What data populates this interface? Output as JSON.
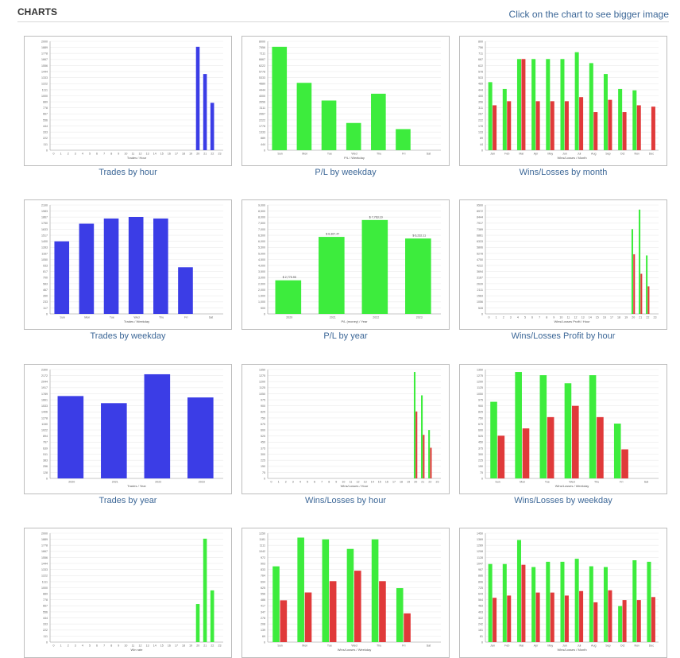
{
  "header": {
    "title": "CHARTS",
    "hint": "Click on the chart to see bigger image"
  },
  "colors": {
    "blue": "#3b3de6",
    "green": "#3dec3d",
    "red": "#e03a3a"
  },
  "charts": [
    {
      "caption": "Trades by hour",
      "chart_data": {
        "type": "bar",
        "categories": [
          "0",
          "1",
          "2",
          "3",
          "4",
          "5",
          "6",
          "7",
          "8",
          "9",
          "10",
          "11",
          "12",
          "13",
          "14",
          "15",
          "16",
          "17",
          "18",
          "19",
          "20",
          "21",
          "22",
          "23"
        ],
        "series": [
          {
            "color": "blue",
            "values": [
              0,
              0,
              0,
              0,
              0,
              0,
              0,
              0,
              0,
              0,
              0,
              0,
              0,
              0,
              0,
              0,
              0,
              0,
              0,
              0,
              1900,
              1400,
              870,
              0
            ]
          }
        ],
        "ylim": [
          0,
          2000
        ],
        "xlabel": "Trades / Hour"
      }
    },
    {
      "caption": "P/L by weekday",
      "chart_data": {
        "type": "bar",
        "categories": [
          "Sun",
          "Mon",
          "Tue",
          "Wed",
          "Thu",
          "Fri",
          "Sat"
        ],
        "series": [
          {
            "color": "green",
            "values": [
              7600,
              4950,
              3650,
              2000,
              4150,
              1550,
              0
            ]
          }
        ],
        "ylim": [
          0,
          8000
        ],
        "xlabel": "P/L / Weekday"
      }
    },
    {
      "caption": "Wins/Losses by month",
      "chart_data": {
        "type": "bar",
        "categories": [
          "Jan",
          "Feb",
          "Mar",
          "Apr",
          "May",
          "Jun",
          "Jul",
          "Aug",
          "Sep",
          "Oct",
          "Nov",
          "Dec"
        ],
        "series": [
          {
            "color": "green",
            "values": [
              500,
              450,
              670,
              670,
              670,
              670,
              720,
              640,
              560,
              450,
              440,
              0
            ]
          },
          {
            "color": "red",
            "values": [
              330,
              360,
              670,
              360,
              360,
              360,
              390,
              280,
              370,
              280,
              330,
              320
            ]
          }
        ],
        "ylim": [
          0,
          800
        ],
        "xlabel": "Wins/Losses / Month"
      }
    },
    {
      "caption": "Trades by weekday",
      "chart_data": {
        "type": "bar",
        "categories": [
          "Sun",
          "Mon",
          "Tue",
          "Wed",
          "Thu",
          "Fri",
          "Sat"
        ],
        "series": [
          {
            "color": "blue",
            "values": [
              1400,
              1740,
              1840,
              1870,
              1840,
              900,
              0
            ]
          }
        ],
        "ylim": [
          0,
          2100
        ],
        "xlabel": "Trades / Weekday"
      }
    },
    {
      "caption": "P/L by year",
      "chart_data": {
        "type": "bar",
        "categories": [
          "2020",
          "2021",
          "2022",
          "2023"
        ],
        "series": [
          {
            "color": "green",
            "values": [
              2775.95,
              6367.47,
              7763.1,
              6232.11
            ]
          }
        ],
        "data_labels": [
          "$ 2,775.95",
          "$ 6,367.47",
          "$ 7,763.10",
          "$ 6,232.11"
        ],
        "ylim": [
          0,
          9000
        ],
        "ytick_labels": [
          "0",
          "500",
          "1,000",
          "1,500",
          "2,000",
          "2,500",
          "3,000",
          "3,500",
          "4,000",
          "4,500",
          "5,000",
          "5,500",
          "6,000",
          "6,500",
          "7,000",
          "7,500",
          "8,000",
          "8,500",
          "9,000"
        ],
        "xlabel": "P/L (money) / Year"
      }
    },
    {
      "caption": "Wins/Losses Profit by hour",
      "chart_data": {
        "type": "bar",
        "categories": [
          "0",
          "1",
          "2",
          "3",
          "4",
          "5",
          "6",
          "7",
          "8",
          "9",
          "10",
          "11",
          "12",
          "13",
          "14",
          "15",
          "16",
          "17",
          "18",
          "19",
          "20",
          "21",
          "22",
          "23"
        ],
        "series": [
          {
            "color": "green",
            "values": [
              0,
              0,
              0,
              0,
              0,
              0,
              0,
              0,
              0,
              0,
              0,
              0,
              0,
              0,
              0,
              0,
              0,
              0,
              0,
              0,
              7400,
              9100,
              5100,
              0
            ]
          },
          {
            "color": "red",
            "values": [
              0,
              0,
              0,
              0,
              0,
              0,
              0,
              0,
              0,
              0,
              0,
              0,
              0,
              0,
              0,
              0,
              0,
              0,
              0,
              0,
              5200,
              3500,
              2400,
              0
            ]
          }
        ],
        "ylim": [
          0,
          9500
        ],
        "xlabel": "Wins/Losses Profit / Hour"
      }
    },
    {
      "caption": "Trades by year",
      "chart_data": {
        "type": "bar",
        "categories": [
          "2020",
          "2021",
          "2022",
          "2023"
        ],
        "series": [
          {
            "color": "blue",
            "values": [
              1740,
              1590,
              2200,
              1710
            ]
          }
        ],
        "ylim": [
          0,
          2300
        ],
        "xlabel": "Trades / Year"
      }
    },
    {
      "caption": "Wins/Losses by hour",
      "chart_data": {
        "type": "bar",
        "categories": [
          "0",
          "1",
          "2",
          "3",
          "4",
          "5",
          "6",
          "7",
          "8",
          "9",
          "10",
          "11",
          "12",
          "13",
          "14",
          "15",
          "16",
          "17",
          "18",
          "19",
          "20",
          "21",
          "22",
          "23"
        ],
        "series": [
          {
            "color": "green",
            "values": [
              0,
              0,
              0,
              0,
              0,
              0,
              0,
              0,
              0,
              0,
              0,
              0,
              0,
              0,
              0,
              0,
              0,
              0,
              0,
              0,
              1320,
              1030,
              600,
              0
            ]
          },
          {
            "color": "red",
            "values": [
              0,
              0,
              0,
              0,
              0,
              0,
              0,
              0,
              0,
              0,
              0,
              0,
              0,
              0,
              0,
              0,
              0,
              0,
              0,
              0,
              830,
              540,
              380,
              0
            ]
          }
        ],
        "ylim": [
          0,
          1350
        ],
        "xlabel": "Wins/Losses / Hour"
      }
    },
    {
      "caption": "Wins/Losses by weekday",
      "chart_data": {
        "type": "bar",
        "categories": [
          "Sun",
          "Mon",
          "Tue",
          "Wed",
          "Thu",
          "Fri",
          "Sat"
        ],
        "series": [
          {
            "color": "green",
            "values": [
              950,
              1320,
              1280,
              1180,
              1280,
              680,
              0
            ]
          },
          {
            "color": "red",
            "values": [
              530,
              620,
              760,
              900,
              760,
              360,
              0
            ]
          }
        ],
        "ylim": [
          0,
          1350
        ],
        "xlabel": "Wins/Losses / Weekday"
      }
    },
    {
      "caption": "",
      "chart_data": {
        "type": "bar",
        "categories": [
          "0",
          "1",
          "2",
          "3",
          "4",
          "5",
          "6",
          "7",
          "8",
          "9",
          "10",
          "11",
          "12",
          "13",
          "14",
          "15",
          "16",
          "17",
          "18",
          "19",
          "20",
          "21",
          "22",
          "23"
        ],
        "series": [
          {
            "color": "green",
            "values": [
              0,
              0,
              0,
              0,
              0,
              0,
              0,
              0,
              0,
              0,
              0,
              0,
              0,
              0,
              0,
              0,
              0,
              0,
              0,
              0,
              700,
              1900,
              950,
              0
            ]
          }
        ],
        "ylim": [
          0,
          2000
        ],
        "xlabel": "Win rate"
      }
    },
    {
      "caption": "",
      "chart_data": {
        "type": "bar",
        "categories": [
          "Sun",
          "Mon",
          "Tue",
          "Wed",
          "Thu",
          "Fri",
          "Sat"
        ],
        "series": [
          {
            "color": "green",
            "values": [
              870,
              1200,
              1180,
              1070,
              1180,
              620,
              0
            ]
          },
          {
            "color": "red",
            "values": [
              480,
              570,
              700,
              820,
              700,
              330,
              0
            ]
          }
        ],
        "ylim": [
          0,
          1250
        ],
        "xlabel": "Wins/Losses / Weekday"
      }
    },
    {
      "caption": "",
      "chart_data": {
        "type": "bar",
        "categories": [
          "Jan",
          "Feb",
          "Mar",
          "Apr",
          "May",
          "Jun",
          "Jul",
          "Aug",
          "Sep",
          "Oct",
          "Nov",
          "Dec"
        ],
        "series": [
          {
            "color": "green",
            "values": [
              1040,
              1040,
              1360,
              1000,
              1070,
              1070,
              1110,
              1010,
              1000,
              480,
              1090,
              1070
            ]
          },
          {
            "color": "red",
            "values": [
              590,
              620,
              1030,
              660,
              660,
              620,
              680,
              530,
              690,
              560,
              560,
              600
            ]
          }
        ],
        "ylim": [
          0,
          1450
        ],
        "xlabel": "Wins/Losses / Month"
      }
    }
  ]
}
